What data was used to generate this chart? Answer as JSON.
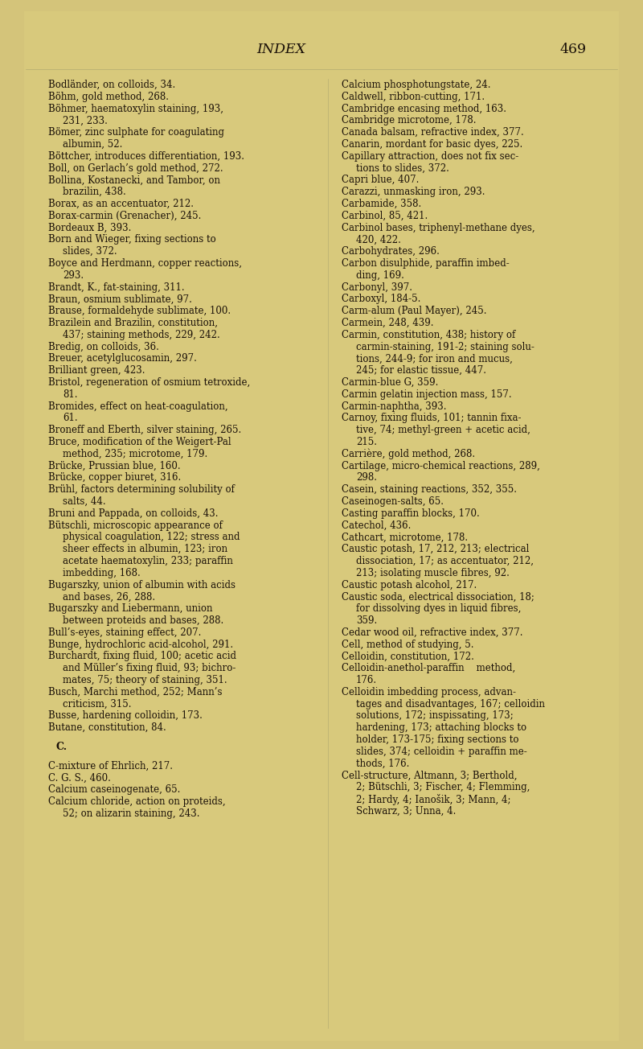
{
  "background_color": "#d4c47a",
  "page_bg": "#cfc07a",
  "title": "INDEX",
  "page_number": "469",
  "title_fontsize": 12.5,
  "body_fontsize": 8.5,
  "text_color": "#1a1008",
  "left_column": [
    "Bodländer, on colloids, 34.",
    "Böhm, gold method, 268.",
    "Böhmer, haematoxylin staining, 193,",
    "    231, 233.",
    "Bömer, zinc sulphate for coagulating",
    "    albumin, 52.",
    "Böttcher, introduces differentiation, 193.",
    "Boll, on Gerlach’s gold method, 272.",
    "Bollina, Kostanecki, and Tambor, on",
    "    brazilin, 438.",
    "Borax, as an accentuator, 212.",
    "Borax-carmin (Grenacher), 245.",
    "Bordeaux B, 393.",
    "Born and Wieger, fixing sections to",
    "    slides, 372.",
    "Boyce and Herdmann, copper reactions,",
    "    293.",
    "Brandt, K., fat-staining, 311.",
    "Braun, osmium sublimate, 97.",
    "Brause, formaldehyde sublimate, 100.",
    "Brazilein and Brazilin, constitution,",
    "    437; staining methods, 229, 242.",
    "Bredig, on colloids, 36.",
    "Breuer, acetylglucosamin, 297.",
    "Brilliant green, 423.",
    "Bristol, regeneration of osmium tetroxide,",
    "    81.",
    "Bromides, effect on heat-coagulation,",
    "    61.",
    "Broneff and Eberth, silver staining, 265.",
    "Bruce, modification of the Weigert-Pal",
    "    method, 235; microtome, 179.",
    "Brücke, Prussian blue, 160.",
    "Brücke, copper biuret, 316.",
    "Brühl, factors determining solubility of",
    "    salts, 44.",
    "Bruni and Pappada, on colloids, 43.",
    "Bütschli, microscopic appearance of",
    "    physical coagulation, 122; stress and",
    "    sheer effects in albumin, 123; iron",
    "    acetate haematoxylin, 233; paraffin",
    "    imbedding, 168.",
    "Bugarszky, union of albumin with acids",
    "    and bases, 26, 288.",
    "Bugarszky and Liebermann, union",
    "    between proteids and bases, 288.",
    "Bull’s-eyes, staining effect, 207.",
    "Bunge, hydrochloric acid-alcohol, 291.",
    "Burchardt, fixing fluid, 100; acetic acid",
    "    and Müller’s fixing fluid, 93; bichro-",
    "    mates, 75; theory of staining, 351.",
    "Busch, Marchi method, 252; Mann’s",
    "    criticism, 315.",
    "Busse, hardening colloidin, 173.",
    "Butane, constitution, 84.",
    "",
    "C.",
    "",
    "C-mixture of Ehrlich, 217.",
    "C. G. S., 460.",
    "Calcium caseinogenate, 65.",
    "Calcium chloride, action on proteids,",
    "    52; on alizarin staining, 243."
  ],
  "right_column": [
    "Calcium phosphotungstate, 24.",
    "Caldwell, ribbon-cutting, 171.",
    "Cambridge encasing method, 163.",
    "Cambridge microtome, 178.",
    "Canada balsam, refractive index, 377.",
    "Canarin, mordant for basic dyes, 225.",
    "Capillary attraction, does not fix sec-",
    "    tions to slides, 372.",
    "Capri blue, 407.",
    "Carazzi, unmasking iron, 293.",
    "Carbamide, 358.",
    "Carbinol, 85, 421.",
    "Carbinol bases, triphenyl-methane dyes,",
    "    420, 422.",
    "Carbohydrates, 296.",
    "Carbon disulphide, paraffin imbed-",
    "    ding, 169.",
    "Carbonyl, 397.",
    "Carboxyl, 184-5.",
    "Carm-alum (Paul Mayer), 245.",
    "Carmein, 248, 439.",
    "Carmin, constitution, 438; history of",
    "    carmin-staining, 191-2; staining solu-",
    "    tions, 244-9; for iron and mucus,",
    "    245; for elastic tissue, 447.",
    "Carmin-blue G, 359.",
    "Carmin gelatin injection mass, 157.",
    "Carmin-naphtha, 393.",
    "Carnoy, fixing fluids, 101; tannin fixa-",
    "    tive, 74; methyl-green + acetic acid,",
    "    215.",
    "Carrière, gold method, 268.",
    "Cartilage, micro-chemical reactions, 289,",
    "    298.",
    "Casein, staining reactions, 352, 355.",
    "Caseinogen-salts, 65.",
    "Casting paraffin blocks, 170.",
    "Catechol, 436.",
    "Cathcart, microtome, 178.",
    "Caustic potash, 17, 212, 213; electrical",
    "    dissociation, 17; as accentuator, 212,",
    "    213; isolating muscle fibres, 92.",
    "Caustic potash alcohol, 217.",
    "Caustic soda, electrical dissociation, 18;",
    "    for dissolving dyes in liquid fibres,",
    "    359.",
    "Cedar wood oil, refractive index, 377.",
    "Cell, method of studying, 5.",
    "Celloidin, constitution, 172.",
    "Celloidin-anethol-paraffin    method,",
    "    176.",
    "Celloidin imbedding process, advan-",
    "    tages and disadvantages, 167; celloidin",
    "    solutions, 172; inspissating, 173;",
    "    hardening, 173; attaching blocks to",
    "    holder, 173-175; fixing sections to",
    "    slides, 374; celloidin + paraffin me-",
    "    thods, 176.",
    "Cell-structure, Altmann, 3; Berthold,",
    "    2; Bütschli, 3; Fischer, 4; Flemming,",
    "    2; Hardy, 4; Ianošik, 3; Mann, 4;",
    "    Schwarz, 3; Unna, 4."
  ]
}
